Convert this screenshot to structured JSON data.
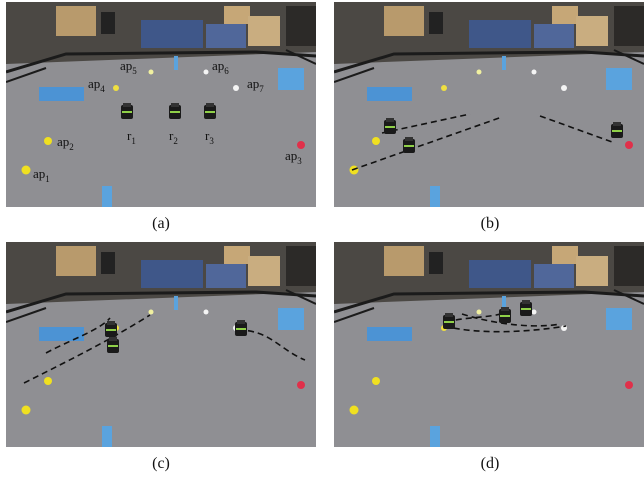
{
  "panels": [
    {
      "caption": "(a)",
      "labels": [
        {
          "base": "ap",
          "sub": "5"
        },
        {
          "base": "ap",
          "sub": "6"
        },
        {
          "base": "ap",
          "sub": "4"
        },
        {
          "base": "ap",
          "sub": "7"
        },
        {
          "base": "r",
          "sub": "1"
        },
        {
          "base": "r",
          "sub": "2"
        },
        {
          "base": "r",
          "sub": "3"
        },
        {
          "base": "ap",
          "sub": "2"
        },
        {
          "base": "ap",
          "sub": "3"
        },
        {
          "base": "ap",
          "sub": "1"
        }
      ]
    },
    {
      "caption": "(b)"
    },
    {
      "caption": "(c)"
    },
    {
      "caption": "(d)"
    }
  ]
}
